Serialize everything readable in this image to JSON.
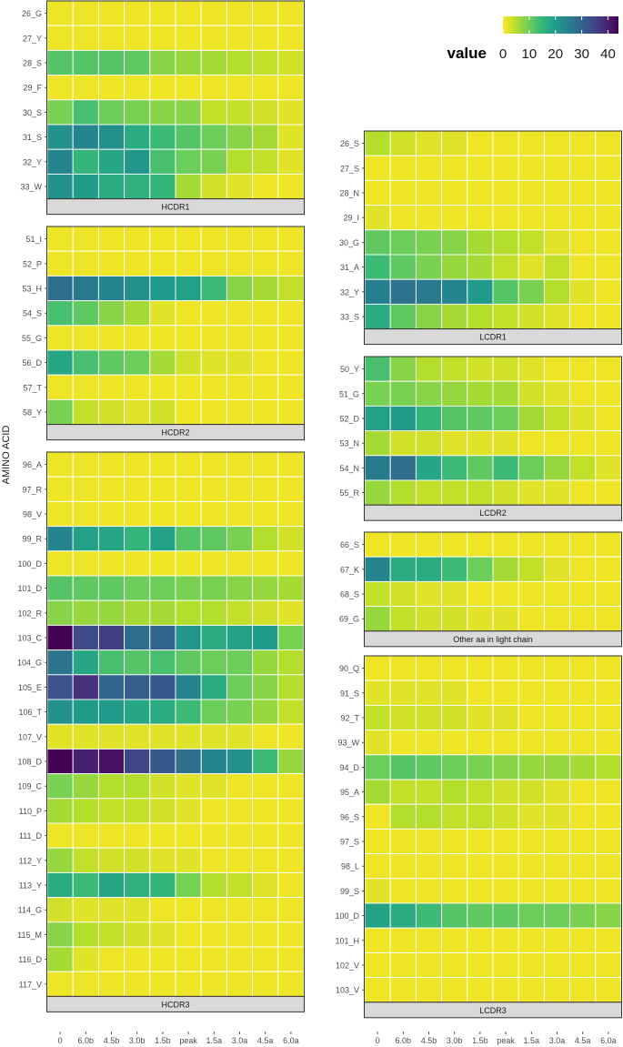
{
  "chart_data": {
    "type": "heatmap",
    "ylabel": "AMINO ACID",
    "x_categories": [
      "0",
      "6.0b",
      "4.5b",
      "3.0b",
      "1.5b",
      "peak",
      "1.5a",
      "3.0a",
      "4.5a",
      "6.0a"
    ],
    "legend": {
      "title": "value",
      "ticks": [
        0,
        10,
        20,
        30,
        40
      ],
      "min": 0,
      "max": 44,
      "colormap": "viridis (reversed)"
    },
    "panels": [
      {
        "name": "HCDR1",
        "column": "left",
        "rows": [
          "26_G",
          "27_Y",
          "28_S",
          "29_F",
          "30_S",
          "31_S",
          "32_Y",
          "33_W"
        ],
        "values": [
          [
            1,
            1,
            1,
            1,
            1,
            1,
            1,
            1,
            1,
            1
          ],
          [
            1,
            1,
            1,
            1,
            1,
            1,
            1,
            1,
            1,
            1
          ],
          [
            12,
            12,
            12,
            11,
            8,
            7,
            6,
            5,
            4,
            3
          ],
          [
            1,
            1,
            1,
            1,
            1,
            1,
            1,
            1,
            1,
            1
          ],
          [
            9,
            13,
            10,
            9,
            8,
            8,
            4,
            4,
            3,
            2
          ],
          [
            22,
            24,
            22,
            17,
            14,
            12,
            10,
            8,
            6,
            2
          ],
          [
            24,
            15,
            18,
            21,
            13,
            10,
            9,
            5,
            4,
            2
          ],
          [
            22,
            20,
            17,
            16,
            15,
            6,
            3,
            2,
            1,
            1
          ]
        ]
      },
      {
        "name": "HCDR2",
        "column": "left",
        "rows": [
          "51_I",
          "52_P",
          "53_H",
          "54_S",
          "55_G",
          "56_D",
          "57_T",
          "58_Y"
        ],
        "values": [
          [
            1,
            1,
            1,
            1,
            1,
            1,
            1,
            1,
            1,
            1
          ],
          [
            1,
            1,
            1,
            1,
            1,
            1,
            1,
            1,
            1,
            1
          ],
          [
            28,
            26,
            24,
            22,
            20,
            19,
            14,
            8,
            6,
            4
          ],
          [
            13,
            11,
            8,
            6,
            2,
            1,
            1,
            1,
            1,
            1
          ],
          [
            1,
            1,
            1,
            1,
            1,
            1,
            1,
            1,
            1,
            1
          ],
          [
            18,
            13,
            11,
            10,
            6,
            3,
            2,
            2,
            1,
            1
          ],
          [
            1,
            1,
            1,
            1,
            1,
            1,
            1,
            1,
            1,
            1
          ],
          [
            9,
            4,
            3,
            2,
            3,
            1,
            1,
            1,
            1,
            1
          ]
        ]
      },
      {
        "name": "HCDR3",
        "column": "left",
        "rows": [
          "96_A",
          "97_R",
          "98_V",
          "99_R",
          "100_D",
          "101_D",
          "102_R",
          "103_C",
          "104_G",
          "105_E",
          "106_T",
          "107_V",
          "108_D",
          "109_C",
          "110_P",
          "111_D",
          "112_Y",
          "113_Y",
          "114_G",
          "115_M",
          "116_D",
          "117_V"
        ],
        "values": [
          [
            1,
            1,
            1,
            1,
            1,
            1,
            1,
            1,
            1,
            1
          ],
          [
            1,
            1,
            1,
            1,
            1,
            1,
            1,
            1,
            1,
            1
          ],
          [
            1,
            1,
            1,
            1,
            1,
            1,
            1,
            1,
            1,
            1
          ],
          [
            24,
            19,
            18,
            15,
            19,
            12,
            11,
            9,
            5,
            3
          ],
          [
            1,
            1,
            1,
            1,
            1,
            1,
            1,
            1,
            1,
            1
          ],
          [
            12,
            11,
            11,
            10,
            10,
            9,
            9,
            8,
            7,
            6
          ],
          [
            8,
            7,
            7,
            6,
            6,
            5,
            5,
            4,
            3,
            2
          ],
          [
            44,
            34,
            36,
            28,
            30,
            21,
            17,
            19,
            20,
            9
          ],
          [
            27,
            18,
            13,
            12,
            13,
            11,
            10,
            10,
            7,
            5
          ],
          [
            33,
            38,
            30,
            31,
            32,
            24,
            17,
            10,
            8,
            5
          ],
          [
            22,
            20,
            20,
            18,
            17,
            14,
            10,
            9,
            7,
            4
          ],
          [
            2,
            2,
            2,
            2,
            2,
            2,
            2,
            2,
            1,
            1
          ],
          [
            44,
            40,
            42,
            35,
            32,
            28,
            24,
            22,
            14,
            7
          ],
          [
            9,
            7,
            5,
            5,
            3,
            2,
            2,
            1,
            1,
            1
          ],
          [
            6,
            5,
            4,
            4,
            3,
            2,
            1,
            1,
            1,
            1
          ],
          [
            1,
            1,
            1,
            1,
            1,
            1,
            1,
            1,
            1,
            1
          ],
          [
            7,
            4,
            3,
            3,
            2,
            2,
            1,
            1,
            1,
            1
          ],
          [
            17,
            14,
            18,
            16,
            15,
            9,
            5,
            4,
            2,
            1
          ],
          [
            3,
            2,
            2,
            2,
            1,
            1,
            1,
            1,
            1,
            1
          ],
          [
            8,
            5,
            4,
            3,
            2,
            1,
            1,
            1,
            1,
            1
          ],
          [
            6,
            2,
            1,
            1,
            1,
            1,
            1,
            1,
            1,
            1
          ],
          [
            1,
            1,
            1,
            1,
            1,
            1,
            1,
            1,
            1,
            1
          ]
        ]
      },
      {
        "name": "LCDR1",
        "column": "right",
        "rows": [
          "26_S",
          "27_S",
          "28_N",
          "29_I",
          "30_G",
          "31_A",
          "32_Y",
          "33_S"
        ],
        "values": [
          [
            5,
            3,
            2,
            2,
            1,
            1,
            1,
            1,
            1,
            1
          ],
          [
            1,
            1,
            1,
            1,
            1,
            1,
            1,
            1,
            1,
            1
          ],
          [
            1,
            1,
            1,
            1,
            1,
            1,
            1,
            1,
            1,
            1
          ],
          [
            2,
            1,
            1,
            1,
            1,
            1,
            1,
            1,
            1,
            1
          ],
          [
            11,
            10,
            9,
            8,
            6,
            5,
            4,
            2,
            1,
            1
          ],
          [
            14,
            11,
            9,
            7,
            6,
            4,
            2,
            4,
            1,
            1
          ],
          [
            25,
            27,
            26,
            24,
            20,
            12,
            9,
            5,
            2,
            1
          ],
          [
            17,
            11,
            8,
            6,
            5,
            4,
            3,
            2,
            1,
            1
          ]
        ]
      },
      {
        "name": "LCDR2",
        "column": "right",
        "rows": [
          "50_Y",
          "51_G",
          "52_D",
          "53_N",
          "54_N",
          "55_R"
        ],
        "values": [
          [
            13,
            8,
            5,
            4,
            3,
            3,
            2,
            1,
            1,
            1
          ],
          [
            9,
            9,
            8,
            7,
            6,
            6,
            3,
            2,
            1,
            1
          ],
          [
            19,
            20,
            15,
            12,
            11,
            10,
            6,
            4,
            2,
            1
          ],
          [
            6,
            3,
            3,
            2,
            2,
            2,
            1,
            1,
            1,
            1
          ],
          [
            26,
            28,
            18,
            14,
            11,
            14,
            10,
            7,
            4,
            2
          ],
          [
            7,
            5,
            4,
            4,
            4,
            3,
            2,
            2,
            1,
            1
          ]
        ]
      },
      {
        "name": "Other aa in light chain",
        "column": "right",
        "rows": [
          "66_S",
          "67_K",
          "68_S",
          "69_G"
        ],
        "values": [
          [
            1,
            1,
            1,
            1,
            1,
            1,
            1,
            1,
            1,
            1
          ],
          [
            24,
            17,
            17,
            14,
            10,
            6,
            4,
            2,
            1,
            1
          ],
          [
            4,
            3,
            2,
            2,
            1,
            1,
            1,
            1,
            1,
            1
          ],
          [
            7,
            4,
            3,
            3,
            2,
            2,
            1,
            1,
            1,
            1
          ]
        ]
      },
      {
        "name": "LCDR3",
        "column": "right",
        "rows": [
          "90_Q",
          "91_S",
          "92_T",
          "93_W",
          "94_D",
          "95_A",
          "96_S",
          "97_S",
          "98_L",
          "99_S",
          "100_D",
          "101_H",
          "102_V",
          "103_V"
        ],
        "values": [
          [
            1,
            1,
            1,
            1,
            1,
            1,
            1,
            1,
            1,
            1
          ],
          [
            2,
            2,
            2,
            2,
            1,
            1,
            1,
            1,
            1,
            1
          ],
          [
            4,
            3,
            3,
            3,
            2,
            2,
            1,
            1,
            1,
            1
          ],
          [
            2,
            1,
            1,
            1,
            1,
            1,
            1,
            1,
            1,
            1
          ],
          [
            10,
            12,
            11,
            10,
            9,
            8,
            7,
            7,
            6,
            5
          ],
          [
            6,
            4,
            4,
            5,
            4,
            3,
            3,
            2,
            1,
            1
          ],
          [
            1,
            5,
            5,
            4,
            4,
            3,
            2,
            2,
            1,
            1
          ],
          [
            1,
            1,
            1,
            1,
            1,
            1,
            1,
            1,
            1,
            1
          ],
          [
            1,
            1,
            1,
            1,
            1,
            1,
            1,
            1,
            1,
            1
          ],
          [
            2,
            1,
            1,
            1,
            1,
            1,
            1,
            1,
            1,
            1
          ],
          [
            19,
            17,
            14,
            12,
            11,
            11,
            10,
            10,
            9,
            8
          ],
          [
            1,
            1,
            1,
            1,
            1,
            1,
            1,
            1,
            1,
            1
          ],
          [
            1,
            1,
            1,
            1,
            1,
            1,
            1,
            1,
            1,
            1
          ],
          [
            1,
            1,
            1,
            1,
            1,
            1,
            1,
            1,
            1,
            1
          ]
        ]
      }
    ]
  }
}
